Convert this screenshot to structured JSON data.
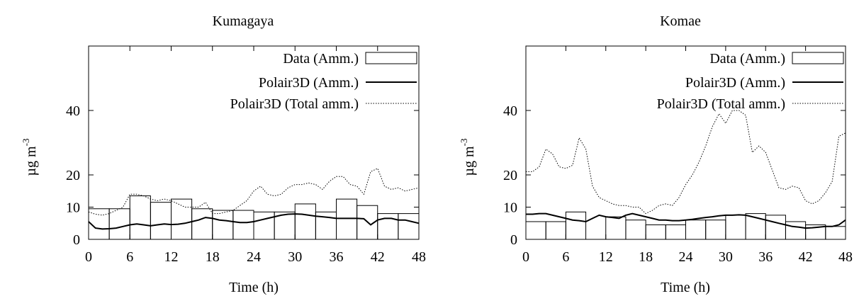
{
  "chart_data": [
    {
      "type": "bar",
      "title": "Kumagaya",
      "xlabel": "Time (h)",
      "ylabel": "µg m",
      "ylabel_exp": "-3",
      "xlim": [
        0,
        48
      ],
      "ylim": [
        0,
        60
      ],
      "y_scale_note": "nonlinear tick labels",
      "x_ticks": [
        0,
        6,
        12,
        18,
        24,
        30,
        36,
        42,
        48
      ],
      "y_tick_labels": [
        "0",
        "10",
        "20",
        "40"
      ],
      "legend_position": "top-right",
      "legend": [
        "Data (Amm.)",
        "Polair3D (Amm.)",
        "Polair3D (Total amm.)"
      ],
      "bars": {
        "name": "Data (Amm.)",
        "x_start": [
          0,
          3,
          6,
          9,
          12,
          15,
          18,
          21,
          24,
          27,
          30,
          33,
          36,
          39,
          42,
          45
        ],
        "values": [
          9.5,
          9.5,
          13.5,
          11.5,
          12.5,
          9.5,
          9,
          9,
          8.5,
          8.5,
          11,
          8.5,
          12.5,
          10.5,
          8,
          8
        ]
      },
      "series": [
        {
          "name": "Polair3D (Amm.)",
          "style": "solid",
          "x": [
            0,
            1,
            2,
            3,
            4,
            5,
            6,
            7,
            8,
            9,
            10,
            11,
            12,
            13,
            14,
            15,
            16,
            17,
            18,
            19,
            20,
            21,
            22,
            23,
            24,
            25,
            26,
            27,
            28,
            29,
            30,
            31,
            32,
            33,
            34,
            35,
            36,
            37,
            38,
            39,
            40,
            41,
            42,
            43,
            44,
            45,
            46,
            47,
            48
          ],
          "values": [
            5.5,
            3.5,
            3.2,
            3.3,
            3.5,
            4.0,
            4.5,
            4.8,
            4.5,
            4.2,
            4.5,
            4.8,
            4.6,
            4.7,
            5.0,
            5.5,
            6.0,
            6.8,
            6.5,
            6.0,
            5.8,
            5.5,
            5.2,
            5.2,
            5.5,
            6.0,
            6.5,
            7.0,
            7.5,
            7.8,
            7.9,
            7.8,
            7.5,
            7.2,
            7.0,
            6.8,
            6.5,
            6.5,
            6.5,
            6.5,
            6.4,
            4.5,
            6.0,
            6.5,
            6.5,
            6.0,
            6.0,
            5.5,
            5.0
          ]
        },
        {
          "name": "Polair3D (Total amm.)",
          "style": "dotted",
          "x": [
            0,
            1,
            2,
            3,
            4,
            5,
            6,
            7,
            8,
            9,
            10,
            11,
            12,
            13,
            14,
            15,
            16,
            17,
            18,
            19,
            20,
            21,
            22,
            23,
            24,
            25,
            26,
            27,
            28,
            29,
            30,
            31,
            32,
            33,
            34,
            35,
            36,
            37,
            38,
            39,
            40,
            41,
            42,
            43,
            44,
            45,
            46,
            47,
            48
          ],
          "values": [
            8.5,
            7.8,
            7.5,
            8.0,
            9.0,
            10.0,
            14.0,
            14.0,
            13.5,
            12.5,
            12.0,
            12.5,
            12.0,
            11.0,
            10.0,
            10.0,
            10.0,
            11.5,
            8.0,
            8.0,
            8.5,
            9.0,
            10.5,
            12.0,
            15.0,
            16.5,
            14.0,
            13.5,
            14.0,
            16.0,
            17.0,
            17.0,
            17.5,
            17.0,
            15.5,
            18.0,
            19.5,
            19.5,
            17.0,
            16.5,
            14.0,
            21.0,
            22.0,
            16.5,
            15.5,
            16.0,
            15.0,
            15.5,
            16.0
          ]
        }
      ]
    },
    {
      "type": "bar",
      "title": "Komae",
      "xlabel": "Time (h)",
      "ylabel": "µg m",
      "ylabel_exp": "-3",
      "xlim": [
        0,
        48
      ],
      "ylim": [
        0,
        60
      ],
      "y_scale_note": "nonlinear tick labels",
      "x_ticks": [
        0,
        6,
        12,
        18,
        24,
        30,
        36,
        42,
        48
      ],
      "y_tick_labels": [
        "0",
        "10",
        "20",
        "40"
      ],
      "legend_position": "top-right",
      "legend": [
        "Data (Amm.)",
        "Polair3D (Amm.)",
        "Polair3D (Total amm.)"
      ],
      "bars": {
        "name": "Data (Amm.)",
        "x_start": [
          0,
          3,
          6,
          12,
          15,
          18,
          21,
          24,
          27,
          30,
          33,
          36,
          39,
          42,
          45
        ],
        "values": [
          5.5,
          5.5,
          8.5,
          7.0,
          6.0,
          4.5,
          4.5,
          6.0,
          6.0,
          7.5,
          8.0,
          7.5,
          5.5,
          4.5,
          4.0
        ]
      },
      "series": [
        {
          "name": "Polair3D (Amm.)",
          "style": "solid",
          "x": [
            0,
            1,
            2,
            3,
            4,
            5,
            6,
            7,
            8,
            9,
            10,
            11,
            12,
            13,
            14,
            15,
            16,
            17,
            18,
            19,
            20,
            21,
            22,
            23,
            24,
            25,
            26,
            27,
            28,
            29,
            30,
            31,
            32,
            33,
            34,
            35,
            36,
            37,
            38,
            39,
            40,
            41,
            42,
            43,
            44,
            45,
            46,
            47,
            48
          ],
          "values": [
            7.8,
            7.8,
            8.0,
            8.0,
            7.5,
            7.0,
            6.5,
            6.0,
            5.8,
            5.5,
            6.5,
            7.5,
            7.0,
            6.8,
            6.5,
            7.5,
            8.0,
            7.5,
            7.0,
            6.5,
            6.0,
            6.0,
            5.8,
            5.8,
            6.0,
            6.2,
            6.5,
            6.8,
            7.0,
            7.3,
            7.5,
            7.5,
            7.6,
            7.5,
            7.0,
            6.5,
            6.0,
            5.5,
            5.0,
            4.5,
            4.0,
            3.8,
            3.5,
            3.6,
            3.8,
            4.0,
            4.0,
            4.5,
            6.0
          ]
        },
        {
          "name": "Polair3D (Total amm.)",
          "style": "dotted",
          "x": [
            0,
            1,
            2,
            3,
            4,
            5,
            6,
            7,
            8,
            9,
            10,
            11,
            12,
            13,
            14,
            15,
            16,
            17,
            18,
            19,
            20,
            21,
            22,
            23,
            24,
            25,
            26,
            27,
            28,
            29,
            30,
            31,
            32,
            33,
            34,
            35,
            36,
            37,
            38,
            39,
            40,
            41,
            42,
            43,
            44,
            45,
            46,
            47,
            48
          ],
          "values": [
            21.0,
            21.0,
            22.5,
            28.0,
            26.5,
            22.5,
            22.0,
            23.0,
            31.5,
            28.0,
            16.5,
            13.0,
            12.0,
            11.0,
            10.5,
            10.5,
            10.0,
            10.0,
            8.0,
            9.0,
            10.5,
            11.0,
            10.5,
            13.0,
            17.0,
            20.0,
            24.0,
            29.0,
            35.0,
            39.0,
            36.0,
            40.0,
            40.0,
            38.5,
            27.0,
            29.0,
            27.0,
            21.5,
            16.0,
            15.5,
            16.5,
            16.0,
            12.0,
            11.0,
            12.0,
            14.5,
            18.0,
            32.0,
            33.0
          ]
        }
      ]
    }
  ]
}
